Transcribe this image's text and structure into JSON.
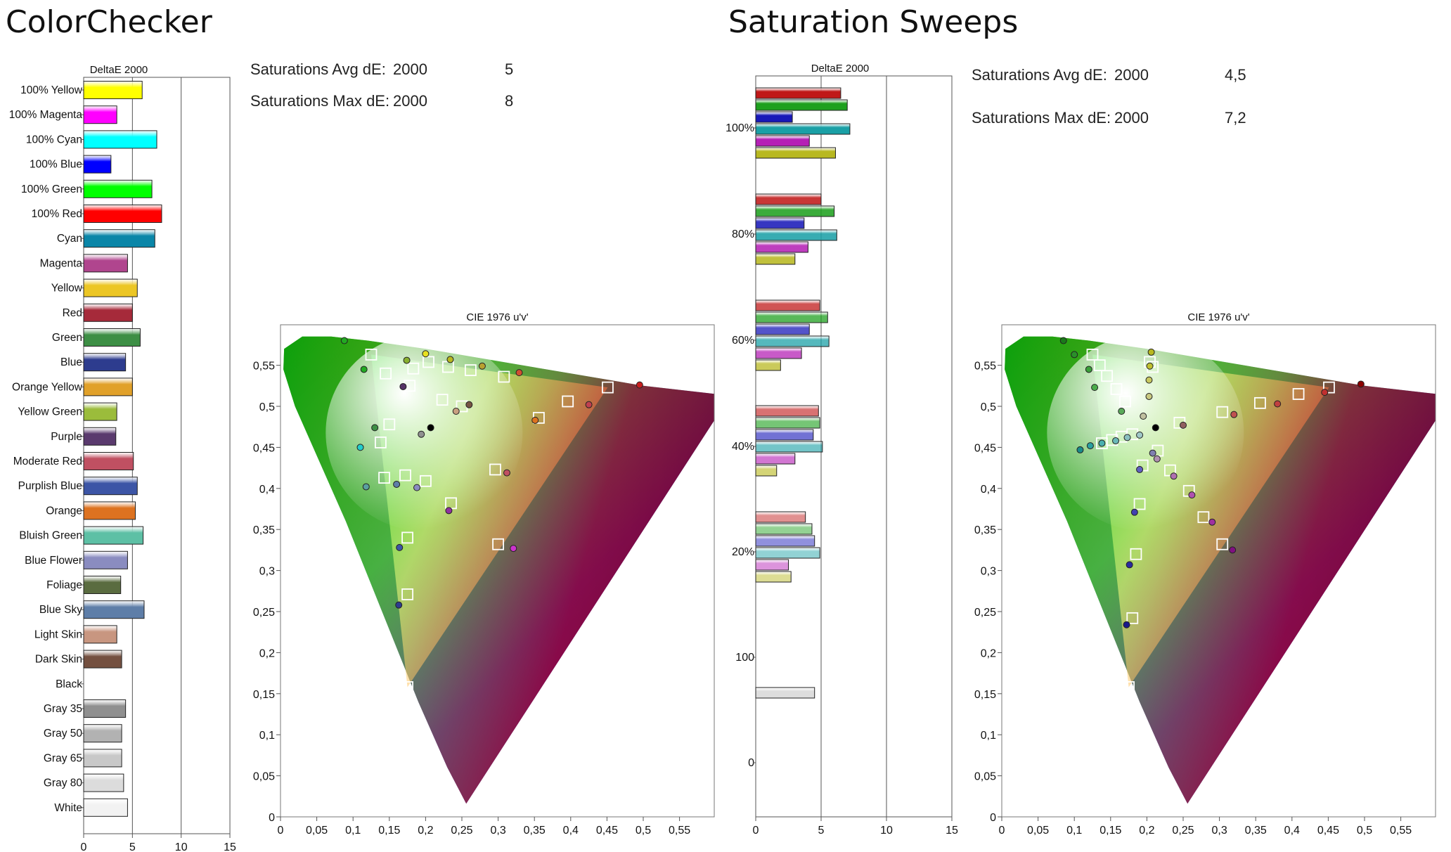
{
  "panels": {
    "left": {
      "title": "ColorChecker",
      "stats": [
        {
          "label": "Saturations Avg dE:",
          "metric": "2000",
          "value": "5"
        },
        {
          "label": "Saturations Max dE:",
          "metric": "2000",
          "value": "8"
        }
      ]
    },
    "right": {
      "title": "Saturation Sweeps",
      "stats": [
        {
          "label": "Saturations Avg dE:",
          "metric": "2000",
          "value": "4,5"
        },
        {
          "label": "Saturations Max dE:",
          "metric": "2000",
          "value": "7,2"
        }
      ]
    }
  },
  "chart_data": [
    {
      "id": "colorchecker-bars",
      "type": "bar",
      "orientation": "horizontal",
      "title": "DeltaE 2000",
      "xlim": [
        0,
        15
      ],
      "xticks": [
        "0",
        "5",
        "10",
        "15"
      ],
      "categories": [
        "100% Yellow",
        "100% Magenta",
        "100% Cyan",
        "100% Blue",
        "100% Green",
        "100% Red",
        "Cyan",
        "Magenta",
        "Yellow",
        "Red",
        "Green",
        "Blue",
        "Orange Yellow",
        "Yellow Green",
        "Purple",
        "Moderate Red",
        "Purplish Blue",
        "Orange",
        "Bluish Green",
        "Blue Flower",
        "Foliage",
        "Blue Sky",
        "Light Skin",
        "Dark Skin",
        "Black",
        "Gray 35",
        "Gray 50",
        "Gray 65",
        "Gray 80",
        "White"
      ],
      "values": [
        6.0,
        3.4,
        7.5,
        2.8,
        7.0,
        8.0,
        7.3,
        4.5,
        5.5,
        5.0,
        5.8,
        4.3,
        5.0,
        3.4,
        3.3,
        5.1,
        5.5,
        5.3,
        6.1,
        4.5,
        3.8,
        6.2,
        3.4,
        3.9,
        0.0,
        4.3,
        3.9,
        3.9,
        4.1,
        4.5
      ],
      "colors": [
        "#ffff00",
        "#ff00ff",
        "#00ffff",
        "#0000ff",
        "#00ff00",
        "#ff0000",
        "#0a86a8",
        "#b0458e",
        "#ecc625",
        "#a62a3a",
        "#3d8f45",
        "#2d3c8e",
        "#e1a12a",
        "#9bbc3b",
        "#5a3a6e",
        "#c05062",
        "#3c55a6",
        "#dd7220",
        "#5dc0a5",
        "#8a8cc0",
        "#5a6c40",
        "#5e7ea8",
        "#c89680",
        "#745040",
        "#000000",
        "#909090",
        "#b2b2b2",
        "#c8c8c8",
        "#dcdcdc",
        "#f2f2f2"
      ]
    },
    {
      "id": "sweeps-bars",
      "type": "bar",
      "orientation": "horizontal",
      "title": "DeltaE 2000",
      "xlim": [
        0,
        15
      ],
      "xticks": [
        "0",
        "5",
        "10",
        "15"
      ],
      "groups": [
        {
          "label": "100%",
          "values": [
            6.5,
            7.0,
            2.8,
            7.2,
            4.1,
            6.1
          ]
        },
        {
          "label": "80%",
          "values": [
            5.0,
            6.0,
            3.7,
            6.2,
            4.0,
            3.0
          ]
        },
        {
          "label": "60%",
          "values": [
            4.9,
            5.5,
            4.1,
            5.6,
            3.5,
            1.9
          ]
        },
        {
          "label": "40%",
          "values": [
            4.8,
            4.9,
            4.4,
            5.1,
            3.0,
            1.6
          ]
        },
        {
          "label": "20%",
          "values": [
            3.8,
            4.3,
            4.5,
            4.9,
            2.5,
            2.7
          ]
        },
        {
          "label": "100",
          "values": [
            4.5
          ]
        },
        {
          "label": "0",
          "values": []
        }
      ],
      "series_colors": [
        "#c01818",
        "#1ea01e",
        "#1818b8",
        "#1aa0a6",
        "#b520b5",
        "#b8b820"
      ],
      "gray_color": "#dddddd"
    },
    {
      "id": "colorchecker-cie",
      "type": "scatter",
      "title": "CIE 1976 u'v'",
      "xlim": [
        0,
        0.6
      ],
      "ylim": [
        0,
        0.6
      ],
      "xticks": [
        "0",
        "0,05",
        "0,1",
        "0,15",
        "0,2",
        "0,25",
        "0,3",
        "0,35",
        "0,4",
        "0,45",
        "0,5",
        "0,55"
      ],
      "yticks": [
        "0",
        "0,05",
        "0,1",
        "0,15",
        "0,2",
        "0,25",
        "0,3",
        "0,35",
        "0,4",
        "0,45",
        "0,5",
        "0,55"
      ],
      "gamut": {
        "red": [
          0.451,
          0.523
        ],
        "green": [
          0.125,
          0.563
        ],
        "blue": [
          0.175,
          0.158
        ]
      },
      "whitepoint": [
        0.198,
        0.468
      ],
      "targets": [
        [
          0.451,
          0.523
        ],
        [
          0.125,
          0.563
        ],
        [
          0.175,
          0.158
        ],
        [
          0.204,
          0.554
        ],
        [
          0.262,
          0.544
        ],
        [
          0.178,
          0.525
        ],
        [
          0.396,
          0.506
        ],
        [
          0.223,
          0.508
        ],
        [
          0.25,
          0.5
        ],
        [
          0.145,
          0.54
        ],
        [
          0.15,
          0.478
        ],
        [
          0.138,
          0.456
        ],
        [
          0.143,
          0.413
        ],
        [
          0.172,
          0.416
        ],
        [
          0.2,
          0.409
        ],
        [
          0.235,
          0.382
        ],
        [
          0.296,
          0.423
        ],
        [
          0.356,
          0.486
        ],
        [
          0.308,
          0.536
        ],
        [
          0.3,
          0.332
        ],
        [
          0.175,
          0.34
        ],
        [
          0.175,
          0.271
        ],
        [
          0.183,
          0.546
        ],
        [
          0.231,
          0.548
        ]
      ],
      "measured": [
        [
          0.495,
          0.526,
          "#c81e1e"
        ],
        [
          0.088,
          0.58,
          "#22aa22"
        ],
        [
          0.115,
          0.545,
          "#22aa22"
        ],
        [
          0.2,
          0.564,
          "#e8e020"
        ],
        [
          0.234,
          0.557,
          "#b8b820"
        ],
        [
          0.278,
          0.549,
          "#b8a030"
        ],
        [
          0.329,
          0.541,
          "#d05030"
        ],
        [
          0.174,
          0.556,
          "#88b030"
        ],
        [
          0.169,
          0.524,
          "#553366"
        ],
        [
          0.425,
          0.502,
          "#c04050"
        ],
        [
          0.26,
          0.502,
          "#775544"
        ],
        [
          0.242,
          0.494,
          "#c8a080"
        ],
        [
          0.194,
          0.466,
          "#909090"
        ],
        [
          0.207,
          0.474,
          "#000000"
        ],
        [
          0.13,
          0.474,
          "#3d8f45"
        ],
        [
          0.11,
          0.45,
          "#22cccc"
        ],
        [
          0.118,
          0.402,
          "#5aa0a0"
        ],
        [
          0.16,
          0.405,
          "#5e7ea8"
        ],
        [
          0.188,
          0.401,
          "#8a8cc0"
        ],
        [
          0.232,
          0.373,
          "#9030a0"
        ],
        [
          0.312,
          0.419,
          "#c05062"
        ],
        [
          0.351,
          0.483,
          "#dd7220"
        ],
        [
          0.321,
          0.327,
          "#cc33cc"
        ],
        [
          0.164,
          0.328,
          "#3c55a6"
        ],
        [
          0.163,
          0.258,
          "#2d3c8e"
        ]
      ]
    },
    {
      "id": "sweeps-cie",
      "type": "scatter",
      "title": "CIE 1976 u'v'",
      "xlim": [
        0,
        0.6
      ],
      "ylim": [
        0,
        0.6
      ],
      "xticks": [
        "0",
        "0,05",
        "0,1",
        "0,15",
        "0,2",
        "0,25",
        "0,3",
        "0,35",
        "0,4",
        "0,45",
        "0,5",
        "0,55"
      ],
      "yticks": [
        "0",
        "0,05",
        "0,1",
        "0,15",
        "0,2",
        "0,25",
        "0,3",
        "0,35",
        "0,4",
        "0,45",
        "0,5",
        "0,55"
      ],
      "gamut": {
        "red": [
          0.451,
          0.523
        ],
        "green": [
          0.125,
          0.563
        ],
        "blue": [
          0.175,
          0.158
        ]
      },
      "whitepoint": [
        0.198,
        0.468
      ],
      "targets": [
        [
          0.451,
          0.523
        ],
        [
          0.409,
          0.515
        ],
        [
          0.356,
          0.504
        ],
        [
          0.304,
          0.493
        ],
        [
          0.245,
          0.48
        ],
        [
          0.125,
          0.563
        ],
        [
          0.135,
          0.55
        ],
        [
          0.145,
          0.537
        ],
        [
          0.158,
          0.521
        ],
        [
          0.17,
          0.506
        ],
        [
          0.175,
          0.158
        ],
        [
          0.18,
          0.242
        ],
        [
          0.185,
          0.32
        ],
        [
          0.19,
          0.381
        ],
        [
          0.194,
          0.428
        ],
        [
          0.204,
          0.554
        ],
        [
          0.208,
          0.548
        ],
        [
          0.138,
          0.455
        ],
        [
          0.152,
          0.459
        ],
        [
          0.165,
          0.463
        ],
        [
          0.18,
          0.466
        ],
        [
          0.304,
          0.332
        ],
        [
          0.278,
          0.365
        ],
        [
          0.258,
          0.397
        ],
        [
          0.232,
          0.422
        ],
        [
          0.215,
          0.446
        ]
      ],
      "measured": [
        [
          0.495,
          0.527,
          "#8b0000"
        ],
        [
          0.445,
          0.517,
          "#c03030"
        ],
        [
          0.38,
          0.503,
          "#c04040"
        ],
        [
          0.32,
          0.49,
          "#c05050"
        ],
        [
          0.25,
          0.477,
          "#906060"
        ],
        [
          0.085,
          0.58,
          "#1a7a1a"
        ],
        [
          0.1,
          0.563,
          "#2a902a"
        ],
        [
          0.12,
          0.545,
          "#3aa03a"
        ],
        [
          0.128,
          0.523,
          "#4aac4a"
        ],
        [
          0.165,
          0.494,
          "#5aaa5a"
        ],
        [
          0.172,
          0.234,
          "#1a1a8a"
        ],
        [
          0.176,
          0.307,
          "#2a2aa0"
        ],
        [
          0.183,
          0.371,
          "#4040b0"
        ],
        [
          0.19,
          0.423,
          "#6060c0"
        ],
        [
          0.208,
          0.443,
          "#8080b0"
        ],
        [
          0.206,
          0.566,
          "#b8b820"
        ],
        [
          0.204,
          0.549,
          "#c0c030"
        ],
        [
          0.203,
          0.532,
          "#c8c860"
        ],
        [
          0.203,
          0.512,
          "#c8c880"
        ],
        [
          0.195,
          0.488,
          "#c0c0a0"
        ],
        [
          0.108,
          0.447,
          "#1a8a8a"
        ],
        [
          0.122,
          0.452,
          "#2aa0a0"
        ],
        [
          0.138,
          0.455,
          "#4ab0b0"
        ],
        [
          0.157,
          0.458,
          "#6ab8b8"
        ],
        [
          0.173,
          0.462,
          "#8ac0c0"
        ],
        [
          0.19,
          0.465,
          "#a0c8c8"
        ],
        [
          0.212,
          0.474,
          "#000000"
        ],
        [
          0.318,
          0.325,
          "#801080"
        ],
        [
          0.29,
          0.359,
          "#a030a0"
        ],
        [
          0.262,
          0.392,
          "#b050b0"
        ],
        [
          0.237,
          0.415,
          "#b070b0"
        ],
        [
          0.214,
          0.436,
          "#b090b0"
        ]
      ]
    }
  ]
}
